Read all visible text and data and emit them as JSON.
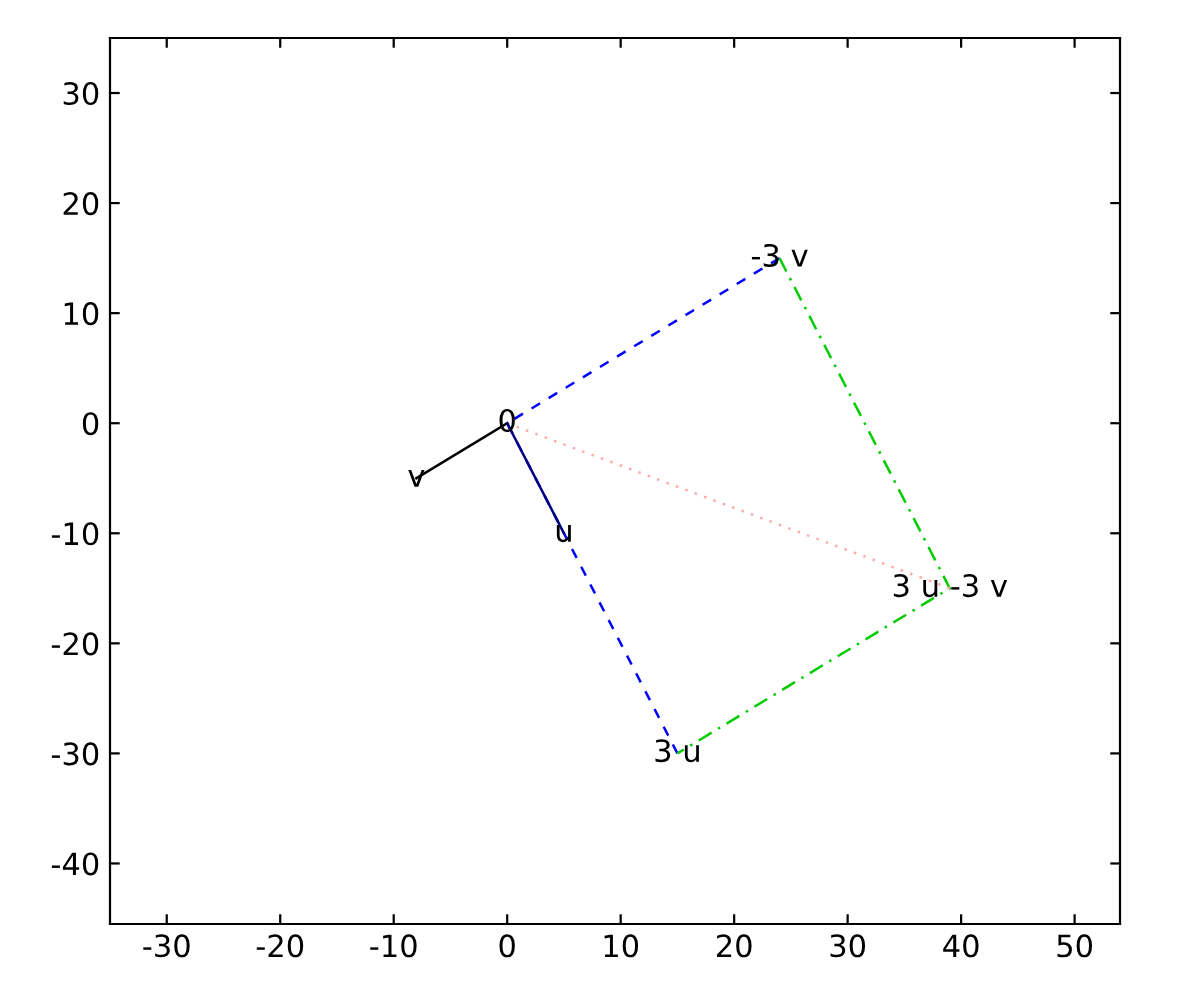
{
  "chart_data": {
    "type": "line",
    "series": [
      {
        "color": "#0000ff",
        "line_style": "dashed",
        "x": [
          24,
          0,
          15
        ],
        "values": [
          15,
          0,
          -30
        ]
      },
      {
        "color": "#00cc00",
        "line_style": "dashdot",
        "x": [
          24,
          39,
          15
        ],
        "values": [
          15,
          -15,
          -30
        ]
      },
      {
        "color": "#ffaaaa",
        "line_style": "dotted",
        "x": [
          0,
          39
        ],
        "values": [
          0,
          -15
        ]
      },
      {
        "color": "#000000",
        "line_style": "solid",
        "x": [
          0,
          -8
        ],
        "values": [
          0,
          -5
        ]
      },
      {
        "color": "#000080",
        "line_style": "solid",
        "x": [
          0,
          5
        ],
        "values": [
          0,
          -10
        ]
      }
    ],
    "annotations": [
      {
        "text": "0",
        "x": 0,
        "y": 0
      },
      {
        "text": "v",
        "x": -8,
        "y": -5
      },
      {
        "text": "u",
        "x": 5,
        "y": -10
      },
      {
        "text": "3 u",
        "x": 15,
        "y": -30
      },
      {
        "text": "-3 v",
        "x": 24,
        "y": 15
      },
      {
        "text": "3 u -3 v",
        "x": 39,
        "y": -15
      }
    ],
    "xlim": [
      -35,
      54
    ],
    "ylim": [
      -45.5,
      35
    ],
    "xticks": [
      -30,
      -20,
      -10,
      0,
      10,
      20,
      30,
      40,
      50
    ],
    "yticks": [
      -40,
      -30,
      -20,
      -10,
      0,
      10,
      20,
      30
    ],
    "grid": false
  }
}
